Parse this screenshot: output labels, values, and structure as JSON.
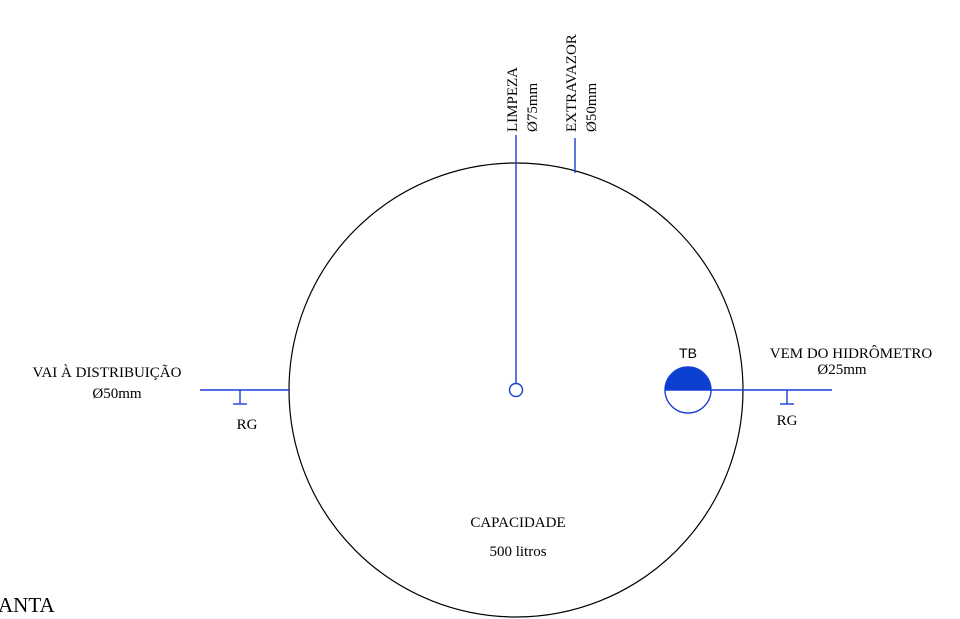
{
  "colors": {
    "pipe": "#1a3fd6",
    "outline": "#000000",
    "float_fill": "#0b3fd0"
  },
  "tank": {
    "capacity_label": "CAPACIDADE",
    "capacity_value": "500 litros"
  },
  "pipes": {
    "limpeza": {
      "label": "LIMPEZA",
      "diameter": "Ø75mm"
    },
    "extravazor": {
      "label": "EXTRAVAZOR",
      "diameter": "Ø50mm"
    },
    "distribuicao": {
      "label": "VAI À DISTRIBUIÇÃO",
      "diameter": "Ø50mm",
      "valve": "RG"
    },
    "hidrometro": {
      "label": "VEM DO HIDRÔMETRO",
      "diameter": "Ø25mm",
      "valve": "RG"
    }
  },
  "float_valve": {
    "label": "TB"
  },
  "view_label": "ANTA"
}
